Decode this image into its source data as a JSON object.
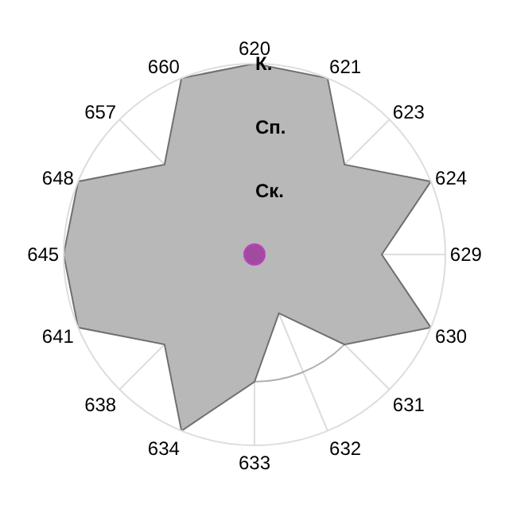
{
  "chart_data": {
    "type": "radar",
    "categories": [
      "620",
      "621",
      "623",
      "624",
      "629",
      "630",
      "631",
      "632",
      "633",
      "634",
      "638",
      "641",
      "645",
      "648",
      "657",
      "660"
    ],
    "series": [
      {
        "color": "#b8b8b8",
        "values": [
          3,
          3,
          2,
          3,
          2,
          3,
          2,
          1,
          2,
          3,
          2,
          3,
          3,
          3,
          2,
          3
        ]
      }
    ],
    "ylim": [
      0,
      3
    ],
    "yticks": [
      {
        "value": 1,
        "label": "Ск."
      },
      {
        "value": 2,
        "label": "Сп."
      },
      {
        "value": 3,
        "label": "К."
      }
    ],
    "grid": true
  }
}
